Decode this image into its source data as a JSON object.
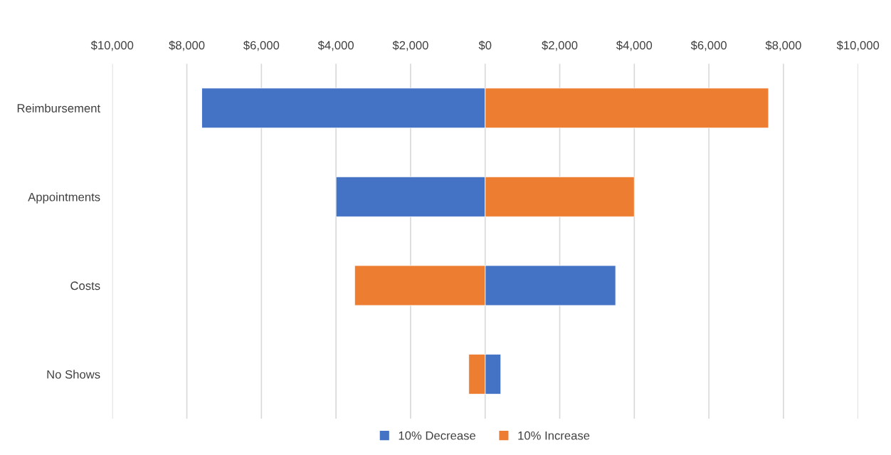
{
  "chart_data": {
    "type": "bar",
    "orientation": "horizontal",
    "stacked": true,
    "categories": [
      "Reimbursement",
      "Appointments",
      "Costs",
      "No Shows"
    ],
    "series": [
      {
        "name": "10% Decrease",
        "color": "#4472c4",
        "values": [
          -7600,
          -4000,
          3500,
          420
        ]
      },
      {
        "name": "10% Increase",
        "color": "#ed7d31",
        "values": [
          7600,
          4000,
          -3500,
          -440
        ]
      }
    ],
    "xlim": [
      -10000,
      10000
    ],
    "xticks": [
      {
        "value": -10000,
        "label": "$10,000"
      },
      {
        "value": -8000,
        "label": "$8,000"
      },
      {
        "value": -6000,
        "label": "$6,000"
      },
      {
        "value": -4000,
        "label": "$4,000"
      },
      {
        "value": -2000,
        "label": "$2,000"
      },
      {
        "value": 0,
        "label": "$0"
      },
      {
        "value": 2000,
        "label": "$2,000"
      },
      {
        "value": 4000,
        "label": "$4,000"
      },
      {
        "value": 6000,
        "label": "$6,000"
      },
      {
        "value": 8000,
        "label": "$8,000"
      },
      {
        "value": 10000,
        "label": "$10,000"
      }
    ],
    "grid": "x",
    "legend": "bottom"
  }
}
